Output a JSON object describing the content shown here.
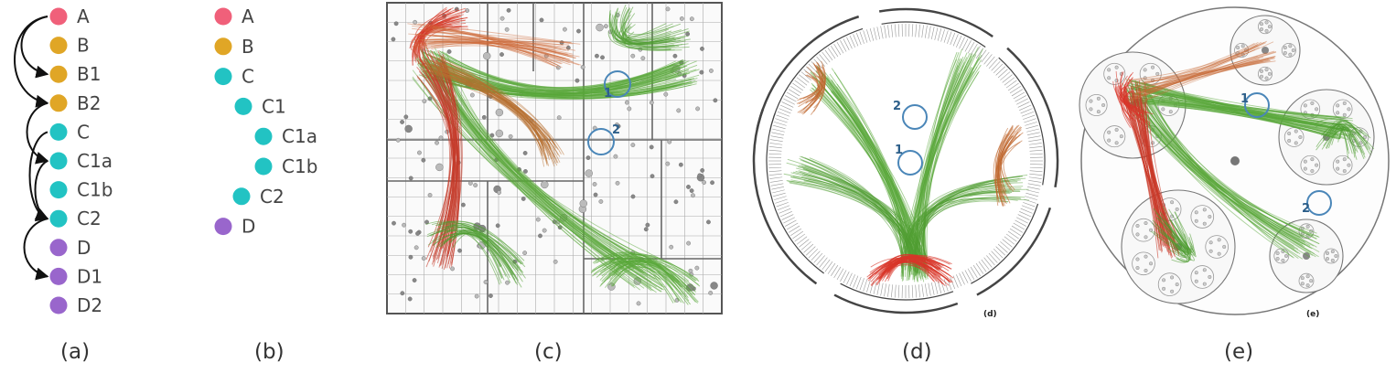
{
  "colors": {
    "pink": "#f0607a",
    "gold": "#e0a626",
    "teal": "#22c3c3",
    "purple": "#9966cc",
    "frame": "#555555",
    "ring": "#4a86b8"
  },
  "panel_a": {
    "caption": "(a)",
    "nodes": [
      {
        "label": "A",
        "color": "pink"
      },
      {
        "label": "B",
        "color": "gold"
      },
      {
        "label": "B1",
        "color": "gold"
      },
      {
        "label": "B2",
        "color": "gold"
      },
      {
        "label": "C",
        "color": "teal"
      },
      {
        "label": "C1a",
        "color": "teal"
      },
      {
        "label": "C1b",
        "color": "teal"
      },
      {
        "label": "C2",
        "color": "teal"
      },
      {
        "label": "D",
        "color": "purple"
      },
      {
        "label": "D1",
        "color": "purple"
      },
      {
        "label": "D2",
        "color": "purple"
      }
    ]
  },
  "panel_b": {
    "caption": "(b)",
    "nodes": [
      {
        "label": "A",
        "color": "pink",
        "depth": 0
      },
      {
        "label": "B",
        "color": "gold",
        "depth": 0
      },
      {
        "label": "C",
        "color": "teal",
        "depth": 0
      },
      {
        "label": "C1",
        "color": "teal",
        "depth": 1
      },
      {
        "label": "C1a",
        "color": "teal",
        "depth": 2
      },
      {
        "label": "C1b",
        "color": "teal",
        "depth": 2
      },
      {
        "label": "C2",
        "color": "teal",
        "depth": 1
      },
      {
        "label": "D",
        "color": "purple",
        "depth": 0
      }
    ]
  },
  "panel_c": {
    "caption": "(c)",
    "markers": [
      "1",
      "2"
    ]
  },
  "panel_d": {
    "caption": "(d)",
    "inner_tag": "(d)",
    "markers": [
      "2",
      "1"
    ]
  },
  "panel_e": {
    "caption": "(e)",
    "inner_tag": "(e)",
    "markers": [
      "1",
      "2"
    ]
  }
}
